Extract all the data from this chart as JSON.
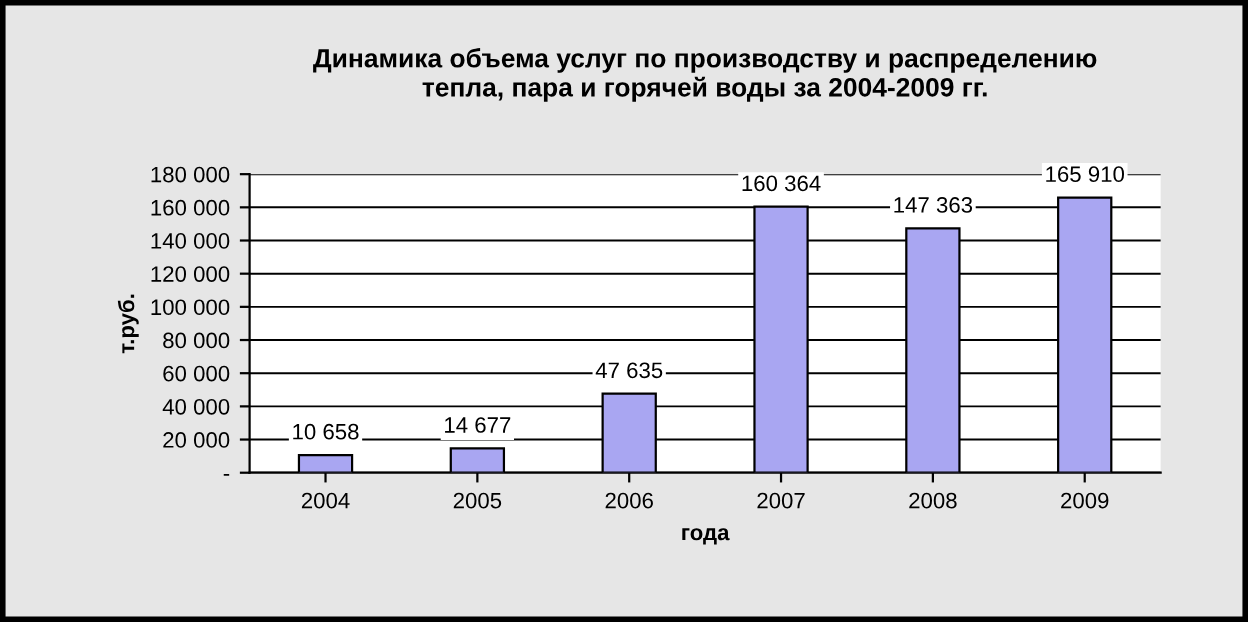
{
  "chart_data": {
    "type": "bar",
    "title": "Динамика объема услуг по производству и распределению\nтепла, пара и горячей воды за 2004-2009 гг.",
    "xlabel": "года",
    "ylabel": "т.руб.",
    "categories": [
      "2004",
      "2005",
      "2006",
      "2007",
      "2008",
      "2009"
    ],
    "values": [
      10658,
      14677,
      47635,
      160364,
      147363,
      165910
    ],
    "value_labels": [
      "10 658",
      "14 677",
      "47 635",
      "160 364",
      "147 363",
      "165 910"
    ],
    "color": "#a9a6f2",
    "ylim": [
      0,
      180000
    ],
    "yticks": [
      {
        "value": 0,
        "label": "-"
      },
      {
        "value": 20000,
        "label": "20 000"
      },
      {
        "value": 40000,
        "label": "40 000"
      },
      {
        "value": 60000,
        "label": "60 000"
      },
      {
        "value": 80000,
        "label": "80 000"
      },
      {
        "value": 100000,
        "label": "100 000"
      },
      {
        "value": 120000,
        "label": "120 000"
      },
      {
        "value": 140000,
        "label": "140 000"
      },
      {
        "value": 160000,
        "label": "160 000"
      },
      {
        "value": 180000,
        "label": "180 000"
      }
    ],
    "grid": "y",
    "legend": false
  }
}
